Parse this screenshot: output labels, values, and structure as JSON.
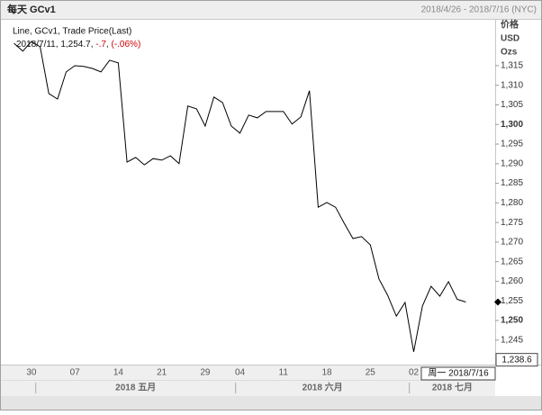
{
  "chart_data": {
    "type": "line",
    "title": "每天 GCv1",
    "date_range": "2018/4/26 - 2018/7/16 (NYC)",
    "axis_labels": [
      "价格",
      "USD",
      "Ozs"
    ],
    "legend_title": "Line, GCv1, Trade Price(Last)",
    "last_point": {
      "date": "2018/7/11",
      "value": {
        "value": 1254.7,
        "label": "1,254.7"
      },
      "change": {
        "value": -0.7,
        "label": "-.7"
      },
      "change_pct": {
        "value": -0.06,
        "label": "(-.06%)"
      }
    },
    "crosshair": {
      "x_label": "周一 2018/7/16",
      "y": {
        "value": 1238.6,
        "label": "1,238.6"
      }
    },
    "categories": [
      null,
      null,
      "30",
      null,
      null,
      null,
      null,
      "07",
      null,
      null,
      null,
      null,
      "14",
      null,
      null,
      null,
      null,
      "21",
      null,
      null,
      null,
      null,
      "29",
      null,
      null,
      null,
      "04",
      null,
      null,
      null,
      null,
      "11",
      null,
      null,
      null,
      null,
      "18",
      null,
      null,
      null,
      null,
      "25",
      null,
      null,
      null,
      null,
      "02",
      null,
      null,
      null,
      null,
      null,
      null,
      null,
      null,
      null
    ],
    "month_labels": [
      {
        "start": 3,
        "label": "2018 五月"
      },
      {
        "start": 26,
        "label": "2018 六月"
      },
      {
        "start": 46,
        "label": "2018 七月"
      }
    ],
    "series": [
      {
        "name": "GCv1",
        "color": "#000000",
        "values": [
          1320.7,
          1318.7,
          1321.2,
          1319.8,
          1307.9,
          1306.5,
          1313.4,
          1315.0,
          1314.8,
          1314.3,
          1313.4,
          1316.4,
          1315.7,
          1290.4,
          1291.6,
          1289.7,
          1291.3,
          1290.9,
          1292.0,
          1290.0,
          1304.7,
          1304.0,
          1299.6,
          1307.0,
          1305.6,
          1299.6,
          1297.8,
          1302.4,
          1301.7,
          1303.3,
          1303.3,
          1303.3,
          1300.1,
          1301.9,
          1308.6,
          1278.9,
          1280.1,
          1278.9,
          1274.8,
          1270.9,
          1271.4,
          1269.3,
          1260.6,
          1256.4,
          1251.1,
          1254.6,
          1242.0,
          1253.7,
          1258.7,
          1256.2,
          1259.9,
          1255.4,
          1254.7,
          null,
          null,
          null
        ]
      }
    ],
    "ylim": [
      1238.75,
      1326.7
    ],
    "yticks": [
      {
        "value": 1245,
        "label": "1,245"
      },
      {
        "value": 1250,
        "label": "1,250"
      },
      {
        "value": 1255,
        "label": "1,255"
      },
      {
        "value": 1260,
        "label": "1,260"
      },
      {
        "value": 1265,
        "label": "1,265"
      },
      {
        "value": 1270,
        "label": "1,270"
      },
      {
        "value": 1275,
        "label": "1,275"
      },
      {
        "value": 1280,
        "label": "1,280"
      },
      {
        "value": 1285,
        "label": "1,285"
      },
      {
        "value": 1290,
        "label": "1,290"
      },
      {
        "value": 1295,
        "label": "1,295"
      },
      {
        "value": 1300,
        "label": "1,300"
      },
      {
        "value": 1305,
        "label": "1,305"
      },
      {
        "value": 1310,
        "label": "1,310"
      },
      {
        "value": 1315,
        "label": "1,315"
      }
    ],
    "grid": false
  }
}
